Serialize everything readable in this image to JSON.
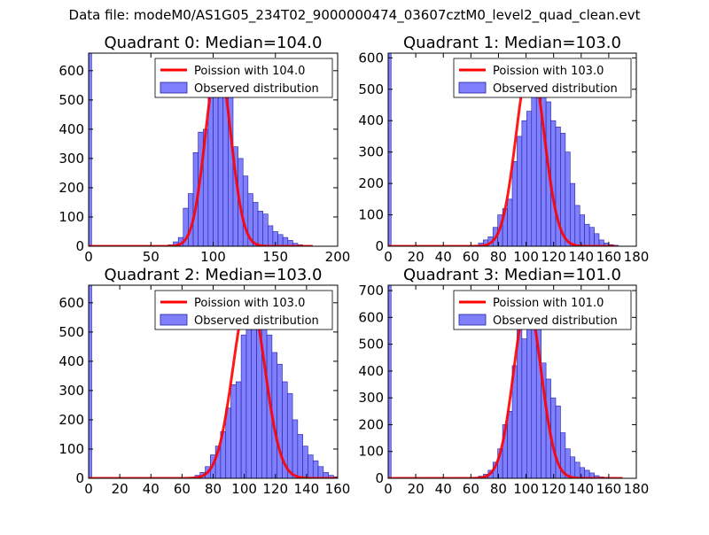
{
  "figure": {
    "title": "Data file: modeM0/AS1G05_234T02_9000000474_03607cztM0_level2_quad_clean.evt"
  },
  "colors": {
    "bar_fill": "#8080ff",
    "bar_edge": "#2020a0",
    "fit_line": "#ff0000",
    "axes": "#000000"
  },
  "chart_data": [
    {
      "type": "bar",
      "title": "Quadrant 0: Median=104.0",
      "xlim": [
        0,
        200
      ],
      "ylim": [
        0,
        660
      ],
      "xticks": [
        0,
        50,
        100,
        150,
        200
      ],
      "yticks": [
        0,
        100,
        200,
        300,
        400,
        500,
        600
      ],
      "bin_width": 4,
      "bin_start": 64,
      "zero_bin_value": 660,
      "values": [
        5,
        15,
        30,
        130,
        180,
        320,
        390,
        400,
        590,
        530,
        630,
        580,
        510,
        340,
        300,
        240,
        180,
        150,
        120,
        110,
        70,
        50,
        40,
        30,
        20,
        10,
        5
      ],
      "fit_mean": 104.0,
      "fit_peak": 630,
      "fit_range": [
        0,
        180
      ],
      "legend": {
        "fit_label": "Poission with 104.0",
        "bars_label": "Observed distribution",
        "position": "upper-right"
      }
    },
    {
      "type": "bar",
      "title": "Quadrant 1: Median=103.0",
      "xlim": [
        0,
        180
      ],
      "ylim": [
        0,
        615
      ],
      "xticks": [
        0,
        20,
        40,
        60,
        80,
        100,
        120,
        140,
        160,
        180
      ],
      "yticks": [
        0,
        100,
        200,
        300,
        400,
        500,
        600
      ],
      "bin_width": 3.5,
      "bin_start": 62,
      "zero_bin_value": 615,
      "values": [
        3,
        10,
        20,
        30,
        60,
        100,
        120,
        150,
        270,
        350,
        400,
        430,
        500,
        590,
        520,
        460,
        400,
        380,
        360,
        300,
        200,
        130,
        100,
        70,
        60,
        40,
        20,
        10,
        5,
        3
      ],
      "fit_mean": 103.0,
      "fit_peak": 590,
      "fit_range": [
        0,
        165
      ],
      "legend": {
        "fit_label": "Poission with 103.0",
        "bars_label": "Observed distribution",
        "position": "upper-right"
      }
    },
    {
      "type": "bar",
      "title": "Quadrant 2: Median=103.0",
      "xlim": [
        0,
        160
      ],
      "ylim": [
        0,
        660
      ],
      "xticks": [
        0,
        20,
        40,
        60,
        80,
        100,
        120,
        140,
        160
      ],
      "yticks": [
        0,
        100,
        200,
        300,
        400,
        500,
        600
      ],
      "bin_width": 3.3,
      "bin_start": 65,
      "zero_bin_value": 660,
      "values": [
        3,
        10,
        20,
        40,
        80,
        110,
        160,
        240,
        320,
        330,
        490,
        520,
        600,
        620,
        570,
        490,
        430,
        390,
        330,
        290,
        200,
        150,
        110,
        80,
        60,
        40,
        20,
        10,
        5
      ],
      "fit_mean": 103.0,
      "fit_peak": 630,
      "fit_range": [
        0,
        160
      ],
      "legend": {
        "fit_label": "Poission with 103.0",
        "bars_label": "Observed distribution",
        "position": "upper-right"
      }
    },
    {
      "type": "bar",
      "title": "Quadrant 3: Median=101.0",
      "xlim": [
        0,
        180
      ],
      "ylim": [
        0,
        720
      ],
      "xticks": [
        0,
        20,
        40,
        60,
        80,
        100,
        120,
        140,
        160,
        180
      ],
      "yticks": [
        0,
        100,
        200,
        300,
        400,
        500,
        600,
        700
      ],
      "bin_width": 3.5,
      "bin_start": 62,
      "zero_bin_value": 720,
      "values": [
        2,
        8,
        15,
        30,
        60,
        110,
        200,
        250,
        420,
        560,
        520,
        590,
        600,
        570,
        430,
        370,
        300,
        270,
        170,
        110,
        80,
        60,
        40,
        30,
        20,
        10,
        5,
        3
      ],
      "fit_mean": 101.0,
      "fit_peak": 655,
      "fit_range": [
        0,
        170
      ],
      "legend": {
        "fit_label": "Poission with 101.0",
        "bars_label": "Observed distribution",
        "position": "upper-right"
      }
    }
  ]
}
